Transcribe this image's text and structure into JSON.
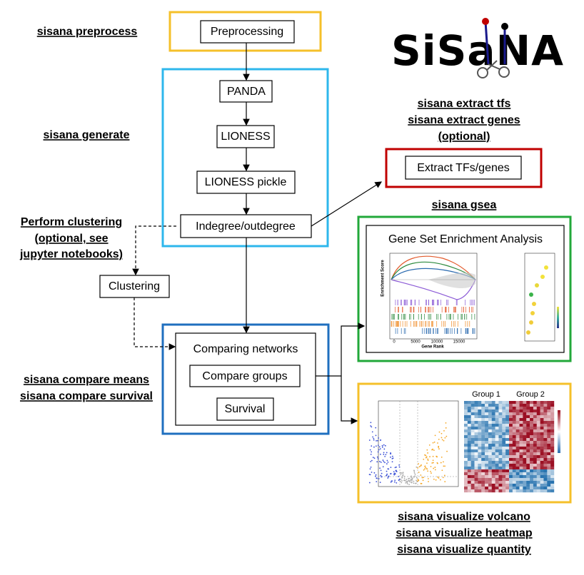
{
  "commands": {
    "preprocess": "sisana preprocess",
    "generate": "sisana generate",
    "clustering": [
      "Perform clustering",
      "(optional, see",
      "jupyter notebooks)"
    ],
    "compare": [
      "sisana compare means",
      "sisana compare survival"
    ],
    "extract": [
      "sisana extract tfs",
      "sisana extract genes",
      "(optional)"
    ],
    "gsea": "sisana gsea",
    "visualize": [
      "sisana visualize volcano",
      "sisana visualize heatmap",
      "sisana visualize quantity"
    ]
  },
  "logo": "SiSaNA",
  "nodes": {
    "preprocessing": "Preprocessing",
    "panda": "PANDA",
    "lioness": "LIONESS",
    "lioness_pickle": "LIONESS pickle",
    "degree": "Indegree/outdegree",
    "clustering": "Clustering",
    "comparing": "Comparing networks",
    "compare_groups": "Compare groups",
    "survival": "Survival",
    "extract": "Extract TFs/genes"
  },
  "gsea_figure": {
    "title": "Gene Set Enrichment Analysis",
    "y_label": "Enrichment Score",
    "x_label": "Gene Rank",
    "x_ticks": [
      "0",
      "5000",
      "10000",
      "15000"
    ]
  },
  "heatmap_figure": {
    "groups": [
      "Group 1",
      "Group 2"
    ]
  }
}
